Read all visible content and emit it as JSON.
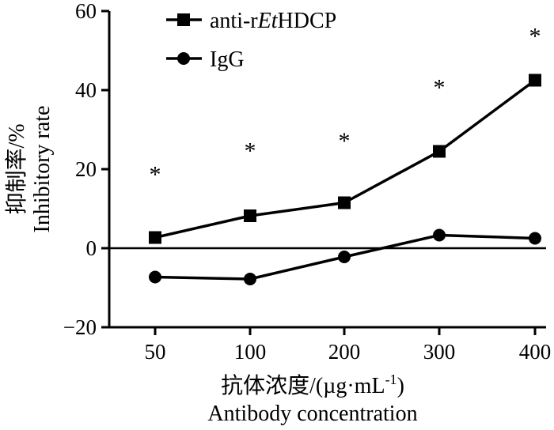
{
  "chart_data": {
    "type": "line",
    "categories": [
      "50",
      "100",
      "200",
      "300",
      "400"
    ],
    "series": [
      {
        "name_prefix": "anti-r",
        "name_italic": "Et",
        "name_suffix": "HDCP",
        "marker": "square",
        "values": [
          2.7,
          8.2,
          11.5,
          24.5,
          42.5
        ]
      },
      {
        "name": "IgG",
        "marker": "circle",
        "values": [
          -7.3,
          -7.8,
          -2.2,
          3.3,
          2.5
        ]
      }
    ],
    "significance": {
      "symbol": "*",
      "values": [
        19.5,
        25.5,
        28,
        41.5,
        54.5
      ]
    },
    "ylabel_cn": "抑制率/%",
    "ylabel_en": "Inhibitory rate",
    "xlabel_cn_main": "抗体浓度/(µg·mL",
    "xlabel_cn_sup": "-1",
    "xlabel_cn_close": ")",
    "xlabel_en": "Antibody concentration",
    "ylim": [
      -20,
      60
    ],
    "yticks": [
      "−20",
      "0",
      "20",
      "40",
      "60"
    ],
    "ytick_values": [
      -20,
      0,
      20,
      40,
      60
    ],
    "reference_line_y": 0,
    "legend_position": "top-center",
    "grid": false
  }
}
